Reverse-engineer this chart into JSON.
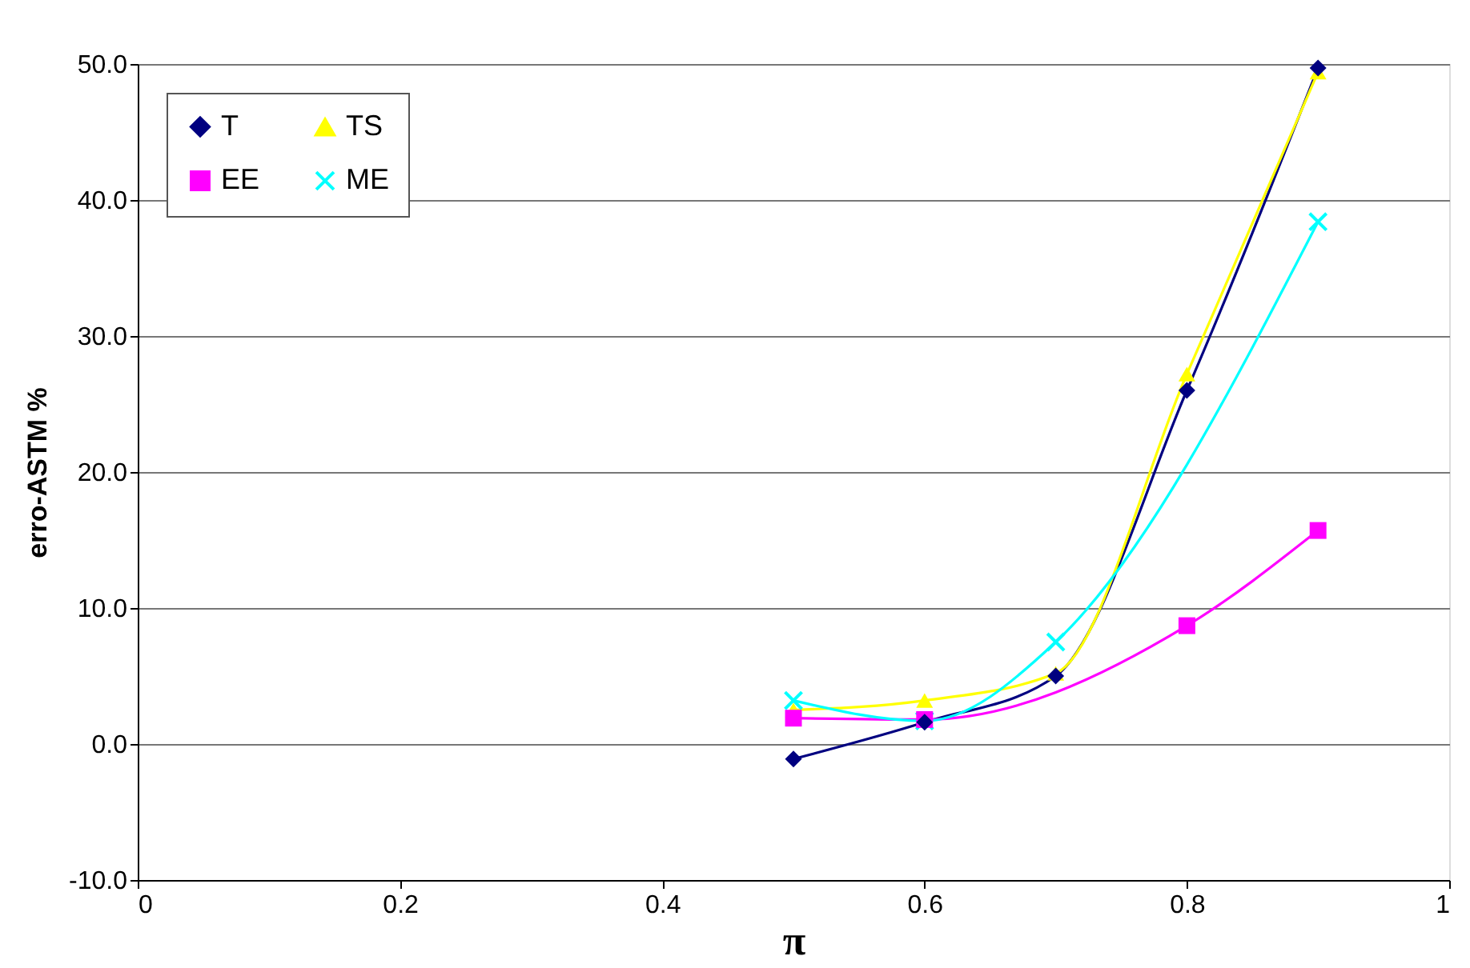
{
  "chart_data": {
    "type": "line",
    "xlabel": "π",
    "ylabel": "erro-ASTM %",
    "xlim": [
      0,
      1
    ],
    "xticks": [
      0,
      0.2,
      0.4,
      0.6,
      0.8,
      1
    ],
    "ylim": [
      -10,
      50
    ],
    "yticks": [
      {
        "value": -10,
        "label": "-10.0"
      },
      {
        "value": 0,
        "label": "0.0"
      },
      {
        "value": 10,
        "label": "10.0"
      },
      {
        "value": 20,
        "label": "20.0"
      },
      {
        "value": 30,
        "label": "30.0"
      },
      {
        "value": 40,
        "label": "40.0"
      },
      {
        "value": 50,
        "label": "50.0"
      }
    ],
    "grid": "y",
    "legend": "top left",
    "line_style": "solid",
    "series": [
      {
        "name": "T",
        "color": "#000080",
        "marker": "diamond",
        "x": [
          0.5,
          0.6,
          0.7,
          0.8,
          0.9
        ],
        "values": [
          -1.1,
          1.6,
          5.0,
          26.0,
          49.7
        ]
      },
      {
        "name": "EE",
        "color": "#ff00ff",
        "marker": "square",
        "x": [
          0.5,
          0.6,
          0.8,
          0.9
        ],
        "values": [
          1.9,
          1.8,
          8.7,
          15.7
        ]
      },
      {
        "name": "TS",
        "color": "#ffff00",
        "marker": "triangle",
        "x": [
          0.5,
          0.6,
          0.7,
          0.8,
          0.9
        ],
        "values": [
          2.5,
          3.2,
          5.2,
          27.2,
          49.4
        ]
      },
      {
        "name": "ME",
        "color": "#00ffff",
        "marker": "cross",
        "x": [
          0.5,
          0.6,
          0.7,
          0.9
        ],
        "values": [
          3.2,
          1.7,
          7.5,
          38.4
        ]
      }
    ]
  }
}
